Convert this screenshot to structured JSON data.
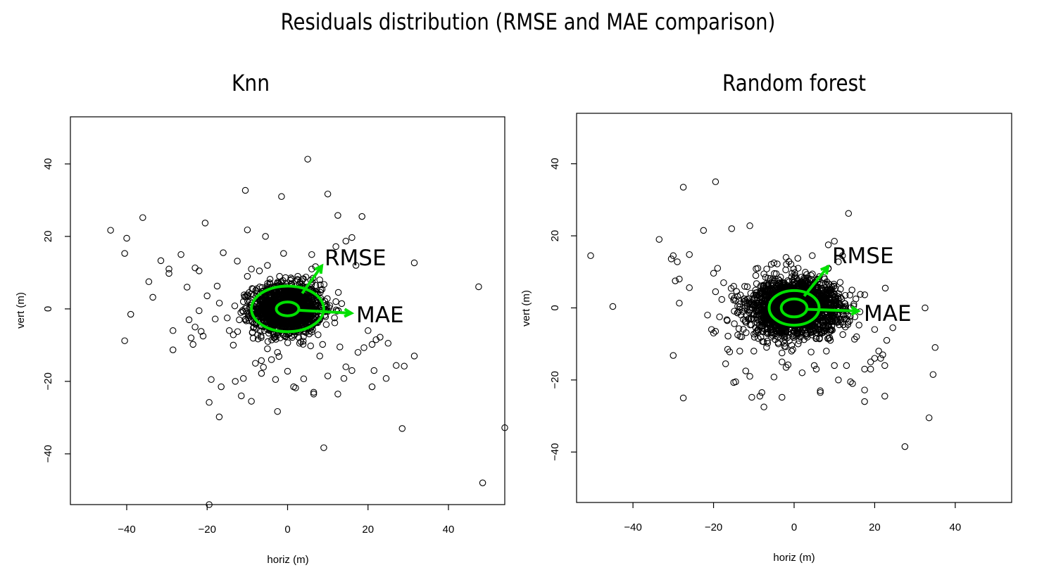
{
  "title": "Residuals distribution (RMSE and MAE comparison)",
  "colors": {
    "points": "#000000",
    "annotation": "#00e000"
  },
  "chart_data": [
    {
      "type": "scatter",
      "title": "Knn",
      "xlabel": "horiz (m)",
      "ylabel": "vert (m)",
      "xlim": [
        -54,
        54
      ],
      "ylim": [
        -54,
        53
      ],
      "xticks": [
        -40,
        -20,
        0,
        20,
        40
      ],
      "yticks": [
        -40,
        -20,
        0,
        20,
        40
      ],
      "grid": false,
      "core": {
        "count": 1600,
        "sx": 4.2,
        "sy": 3.4
      },
      "points": [
        [
          -44,
          21.7
        ],
        [
          -40,
          19.5
        ],
        [
          -40.5,
          15.3
        ],
        [
          -36,
          25.2
        ],
        [
          -34.5,
          7.5
        ],
        [
          -33.5,
          3.2
        ],
        [
          -39,
          -1.5
        ],
        [
          -40.5,
          -8.8
        ],
        [
          -31.5,
          13.3
        ],
        [
          -29.5,
          11
        ],
        [
          -29.5,
          9.8
        ],
        [
          -28.5,
          -6
        ],
        [
          -28.5,
          -11.3
        ],
        [
          -26.5,
          15
        ],
        [
          -25,
          6
        ],
        [
          -24.5,
          -3
        ],
        [
          -24,
          -8
        ],
        [
          -23,
          -5
        ],
        [
          -23.5,
          -9.8
        ],
        [
          -23,
          11.3
        ],
        [
          -22,
          10.5
        ],
        [
          -21.5,
          -6.2
        ],
        [
          -21,
          -7.5
        ],
        [
          -20.5,
          23.7
        ],
        [
          -19,
          -19.5
        ],
        [
          -19.5,
          -25.8
        ],
        [
          -19.5,
          -54
        ],
        [
          -17,
          -29.8
        ],
        [
          -16,
          15.5
        ],
        [
          -16.5,
          -21.5
        ],
        [
          -17.5,
          6.3
        ],
        [
          -10.5,
          32.7
        ],
        [
          -10,
          21.8
        ],
        [
          -9,
          -25.5
        ],
        [
          -8.5,
          -5.2
        ],
        [
          -13.5,
          -10
        ],
        [
          -11.5,
          -24
        ],
        [
          -11,
          -19.2
        ],
        [
          -13,
          -20
        ],
        [
          -14.5,
          -6
        ],
        [
          -15,
          -2.5
        ],
        [
          -18,
          -2.8
        ],
        [
          -20,
          3.6
        ],
        [
          -22,
          -0.5
        ],
        [
          -12.5,
          13.2
        ],
        [
          -5.5,
          20
        ],
        [
          -1.5,
          31
        ],
        [
          -1,
          15.3
        ],
        [
          5,
          41.3
        ],
        [
          10,
          31.7
        ],
        [
          12.5,
          25.8
        ],
        [
          18.5,
          25.5
        ],
        [
          16,
          19.7
        ],
        [
          14.5,
          18.7
        ],
        [
          12,
          17.2
        ],
        [
          17,
          12
        ],
        [
          13,
          -10.5
        ],
        [
          14,
          -19.2
        ],
        [
          14.5,
          -16
        ],
        [
          17.5,
          -12
        ],
        [
          19,
          -10.7
        ],
        [
          21,
          -21.5
        ],
        [
          21.5,
          -17
        ],
        [
          24.5,
          -19.2
        ],
        [
          25,
          -9.5
        ],
        [
          23,
          -7.8
        ],
        [
          20,
          -6
        ],
        [
          27,
          -15.6
        ],
        [
          29,
          -15.8
        ],
        [
          31.5,
          -13
        ],
        [
          28.5,
          -33
        ],
        [
          31.5,
          12.7
        ],
        [
          47.5,
          6.1
        ],
        [
          48.5,
          -48
        ],
        [
          54,
          -32.8
        ],
        [
          9,
          -38.3
        ],
        [
          6.5,
          -23.5
        ],
        [
          6.5,
          -23
        ],
        [
          -2.5,
          -28.3
        ],
        [
          1.5,
          -21.5
        ],
        [
          2,
          -21.8
        ],
        [
          -3,
          -19.5
        ],
        [
          4,
          -19.3
        ],
        [
          -6.5,
          -17.8
        ],
        [
          -6,
          -16.1
        ],
        [
          0,
          -17.2
        ],
        [
          10,
          -18.5
        ],
        [
          12.5,
          -23.5
        ],
        [
          16,
          -17
        ],
        [
          21,
          -9.8
        ],
        [
          22,
          -8.5
        ],
        [
          8,
          -13
        ],
        [
          -5,
          -11
        ],
        [
          -8,
          -15
        ],
        [
          -2.5,
          -12
        ],
        [
          3,
          -9.5
        ],
        [
          -7,
          10.5
        ],
        [
          -5,
          12
        ],
        [
          -2,
          9
        ],
        [
          6,
          11
        ],
        [
          8,
          8
        ],
        [
          -10,
          9
        ],
        [
          -4,
          -14
        ],
        [
          -9,
          11
        ],
        [
          6,
          15
        ],
        [
          7,
          6.5
        ],
        [
          -11,
          2
        ],
        [
          12,
          2
        ],
        [
          -12,
          -3
        ]
      ],
      "annotations": [
        {
          "label": "RMSE",
          "rx": 9,
          "ry": 6.3
        },
        {
          "label": "MAE",
          "rx": 2.8,
          "ry": 1.9
        }
      ]
    },
    {
      "type": "scatter",
      "title": "Random forest",
      "xlabel": "horiz (m)",
      "ylabel": "vert (m)",
      "xlim": [
        -54,
        54
      ],
      "ylim": [
        -54,
        54
      ],
      "xticks": [
        -40,
        -20,
        0,
        20,
        40
      ],
      "yticks": [
        -40,
        -20,
        0,
        20,
        40
      ],
      "grid": false,
      "core": {
        "count": 2100,
        "sx": 5.6,
        "sy": 3.9
      },
      "points": [
        [
          -50.5,
          14.5
        ],
        [
          -45,
          0.4
        ],
        [
          -33.5,
          19
        ],
        [
          -30.5,
          13.6
        ],
        [
          -30,
          14.5
        ],
        [
          -30,
          -13.2
        ],
        [
          -29.5,
          7.5
        ],
        [
          -29,
          12.8
        ],
        [
          -28.5,
          1.3
        ],
        [
          -28.5,
          8
        ],
        [
          -27.5,
          33.5
        ],
        [
          -27.5,
          -25
        ],
        [
          -26,
          5.6
        ],
        [
          -26,
          14.8
        ],
        [
          -22.5,
          21.5
        ],
        [
          -21.5,
          -2
        ],
        [
          -20.5,
          -6
        ],
        [
          -20,
          9.6
        ],
        [
          -20,
          -7
        ],
        [
          -19.5,
          4.5
        ],
        [
          -19.5,
          35
        ],
        [
          -19.5,
          -6.5
        ],
        [
          -19,
          11
        ],
        [
          -18.5,
          -2.5
        ],
        [
          -17.5,
          7
        ],
        [
          -17,
          -15.5
        ],
        [
          -16.5,
          -11.5
        ],
        [
          -16,
          -12.2
        ],
        [
          -15.5,
          22
        ],
        [
          -15,
          6
        ],
        [
          -15,
          -20.7
        ],
        [
          -14.5,
          -20.5
        ],
        [
          -14,
          0.5
        ],
        [
          -14,
          -7.5
        ],
        [
          -13.5,
          -12
        ],
        [
          -13,
          -8
        ],
        [
          -11,
          22.8
        ],
        [
          -12,
          -17.5
        ],
        [
          -11,
          -19
        ],
        [
          -10.5,
          -24.8
        ],
        [
          -8.5,
          -24.5
        ],
        [
          -7.5,
          -27.5
        ],
        [
          -8,
          -23.5
        ],
        [
          -5,
          -19.2
        ],
        [
          -3,
          -15
        ],
        [
          -3,
          -24.8
        ],
        [
          -2,
          -16.5
        ],
        [
          -1.5,
          -15.8
        ],
        [
          2,
          -18
        ],
        [
          5,
          -16
        ],
        [
          5.5,
          -17
        ],
        [
          6.5,
          -23
        ],
        [
          6.5,
          -23.5
        ],
        [
          8,
          -12
        ],
        [
          10,
          -16
        ],
        [
          11,
          -20
        ],
        [
          13,
          -16
        ],
        [
          14.5,
          -21
        ],
        [
          14,
          -20.5
        ],
        [
          15,
          -8.7
        ],
        [
          15.5,
          -8
        ],
        [
          17.5,
          -17
        ],
        [
          17.5,
          -22.8
        ],
        [
          17.5,
          -26
        ],
        [
          19,
          -15
        ],
        [
          19,
          -17
        ],
        [
          20,
          -14
        ],
        [
          20,
          -6
        ],
        [
          21,
          -12
        ],
        [
          21.5,
          -14
        ],
        [
          22,
          -13
        ],
        [
          22.5,
          -16
        ],
        [
          22.5,
          -24.5
        ],
        [
          23,
          -9
        ],
        [
          24.5,
          -5.5
        ],
        [
          27.5,
          -38.5
        ],
        [
          32.5,
          0
        ],
        [
          33.5,
          -30.5
        ],
        [
          34.5,
          -18.5
        ],
        [
          35,
          -11
        ],
        [
          13.5,
          26.2
        ],
        [
          10,
          18.5
        ],
        [
          8.5,
          17.5
        ],
        [
          11,
          12.8
        ],
        [
          12,
          14.5
        ],
        [
          4.5,
          14.5
        ],
        [
          10,
          4
        ],
        [
          8.5,
          11
        ],
        [
          -9,
          11
        ],
        [
          -5,
          12.5
        ],
        [
          -2,
          14
        ],
        [
          1,
          11
        ],
        [
          -3,
          -12.5
        ],
        [
          1,
          -10
        ],
        [
          9,
          -9
        ],
        [
          -10,
          -12
        ],
        [
          -12,
          -4
        ],
        [
          13,
          -3
        ]
      ],
      "annotations": [
        {
          "label": "RMSE",
          "rx": 6.2,
          "ry": 4.8
        },
        {
          "label": "MAE",
          "rx": 3.2,
          "ry": 2.5
        }
      ]
    }
  ]
}
